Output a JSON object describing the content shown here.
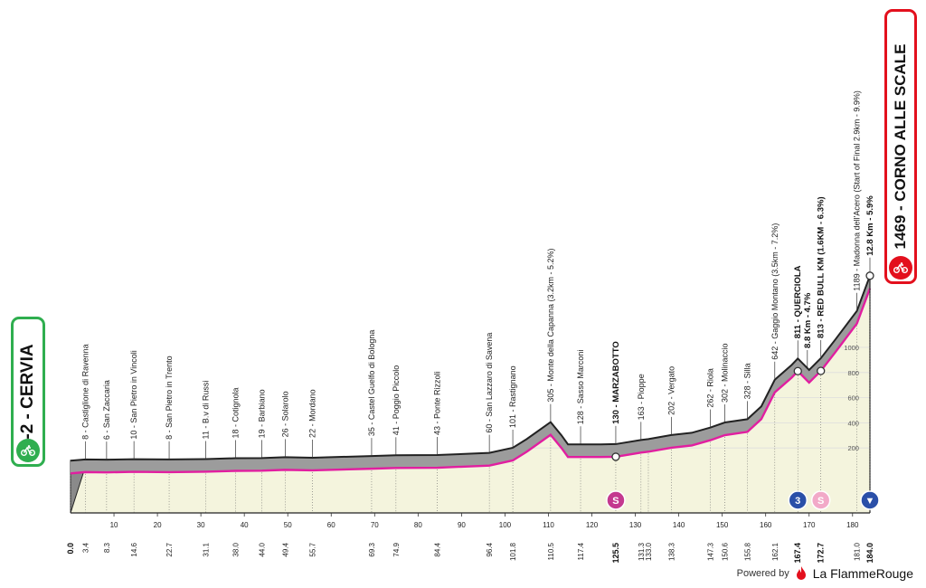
{
  "chart_data": {
    "type": "area",
    "title": "",
    "xlabel": "",
    "ylabel": "",
    "xlim": [
      0,
      184
    ],
    "ylim": [
      0,
      1500
    ],
    "altitude_ticks": [
      200,
      400,
      600,
      800,
      1000
    ],
    "start_label": "-2 - CERVIA",
    "finish_label": "1469 - CORNO ALLE SCALE",
    "km_ticks": [
      10,
      20,
      30,
      40,
      50,
      60,
      70,
      80,
      90,
      100,
      110,
      120,
      130,
      140,
      150,
      160,
      170,
      180
    ],
    "marked_km": [
      {
        "v": 0,
        "label": "0.0",
        "bold": true
      },
      {
        "v": 3.4,
        "label": "3.4"
      },
      {
        "v": 8.3,
        "label": "8.3"
      },
      {
        "v": 14.6,
        "label": "14.6"
      },
      {
        "v": 22.7,
        "label": "22.7"
      },
      {
        "v": 31.1,
        "label": "31.1"
      },
      {
        "v": 38.0,
        "label": "38.0"
      },
      {
        "v": 44.0,
        "label": "44.0"
      },
      {
        "v": 49.4,
        "label": "49.4"
      },
      {
        "v": 55.7,
        "label": "55.7"
      },
      {
        "v": 69.3,
        "label": "69.3"
      },
      {
        "v": 74.9,
        "label": "74.9"
      },
      {
        "v": 84.4,
        "label": "84.4"
      },
      {
        "v": 96.4,
        "label": "96.4"
      },
      {
        "v": 101.8,
        "label": "101.8"
      },
      {
        "v": 110.5,
        "label": "110.5"
      },
      {
        "v": 117.4,
        "label": "117.4"
      },
      {
        "v": 125.5,
        "label": "125.5",
        "bold": true
      },
      {
        "v": 131.3,
        "label": "131.3"
      },
      {
        "v": 133.0,
        "label": "133.0"
      },
      {
        "v": 138.3,
        "label": "138.3"
      },
      {
        "v": 147.3,
        "label": "147.3"
      },
      {
        "v": 150.6,
        "label": "150.6"
      },
      {
        "v": 155.8,
        "label": "155.8"
      },
      {
        "v": 162.1,
        "label": "162.1"
      },
      {
        "v": 167.4,
        "label": "167.4",
        "bold": true
      },
      {
        "v": 172.7,
        "label": "172.7",
        "bold": true
      },
      {
        "v": 181.0,
        "label": "181.0"
      },
      {
        "v": 184.0,
        "label": "184.0",
        "bold": true
      }
    ],
    "profile": [
      {
        "x": 0,
        "y": -2
      },
      {
        "x": 3.4,
        "y": 8
      },
      {
        "x": 8.3,
        "y": 6
      },
      {
        "x": 14.6,
        "y": 10
      },
      {
        "x": 22.7,
        "y": 8
      },
      {
        "x": 31.1,
        "y": 11
      },
      {
        "x": 38.0,
        "y": 18
      },
      {
        "x": 44.0,
        "y": 19
      },
      {
        "x": 49.4,
        "y": 26
      },
      {
        "x": 55.7,
        "y": 22
      },
      {
        "x": 69.3,
        "y": 35
      },
      {
        "x": 74.9,
        "y": 41
      },
      {
        "x": 84.4,
        "y": 43
      },
      {
        "x": 96.4,
        "y": 60
      },
      {
        "x": 101.8,
        "y": 101
      },
      {
        "x": 105,
        "y": 170
      },
      {
        "x": 110.5,
        "y": 305
      },
      {
        "x": 113,
        "y": 200
      },
      {
        "x": 114.5,
        "y": 128
      },
      {
        "x": 117.4,
        "y": 128
      },
      {
        "x": 122,
        "y": 128
      },
      {
        "x": 125.5,
        "y": 130
      },
      {
        "x": 131.3,
        "y": 163
      },
      {
        "x": 133.0,
        "y": 170
      },
      {
        "x": 138.3,
        "y": 202
      },
      {
        "x": 143,
        "y": 220
      },
      {
        "x": 147.3,
        "y": 262
      },
      {
        "x": 150.6,
        "y": 302
      },
      {
        "x": 155.8,
        "y": 328
      },
      {
        "x": 159,
        "y": 430
      },
      {
        "x": 162.1,
        "y": 642
      },
      {
        "x": 166,
        "y": 760
      },
      {
        "x": 167.4,
        "y": 811
      },
      {
        "x": 170,
        "y": 720
      },
      {
        "x": 172.7,
        "y": 813
      },
      {
        "x": 176,
        "y": 960
      },
      {
        "x": 181.0,
        "y": 1189
      },
      {
        "x": 184.0,
        "y": 1469
      }
    ],
    "places": [
      {
        "km": 3.4,
        "label": "8 - Castiglione di Ravenna"
      },
      {
        "km": 8.3,
        "label": "6 - San Zaccaria"
      },
      {
        "km": 14.6,
        "label": "10 - San Pietro in Vincoli"
      },
      {
        "km": 22.7,
        "label": "8 - San Pietro in Trento"
      },
      {
        "km": 31.1,
        "label": "11 - B.v di Russi"
      },
      {
        "km": 38.0,
        "label": "18 - Cotignola"
      },
      {
        "km": 44.0,
        "label": "19 - Barbiano"
      },
      {
        "km": 49.4,
        "label": "26 - Solarolo"
      },
      {
        "km": 55.7,
        "label": "22 - Mordano"
      },
      {
        "km": 69.3,
        "label": "35 - Castel Guelfo di Bologna"
      },
      {
        "km": 74.9,
        "label": "41 - Poggio Piccolo"
      },
      {
        "km": 84.4,
        "label": "43 - Ponte Rizzoli"
      },
      {
        "km": 96.4,
        "label": "60 - San Lazzaro di Savena"
      },
      {
        "km": 101.8,
        "label": "101 - Rastignano"
      },
      {
        "km": 110.5,
        "label": "305 - Monte della Capanna (3.2km - 5.2%)"
      },
      {
        "km": 117.4,
        "label": "128 - Sasso Marconi"
      },
      {
        "km": 125.5,
        "label": "130 - MARZABOTTO",
        "bold": true
      },
      {
        "km": 131.3,
        "label": "163 - Pioppe"
      },
      {
        "km": 138.3,
        "label": "202 - Vergato"
      },
      {
        "km": 147.3,
        "label": "262 - Riola"
      },
      {
        "km": 150.6,
        "label": "302 - Molinaccio"
      },
      {
        "km": 155.8,
        "label": "328 - Silla"
      },
      {
        "km": 162.1,
        "label": "642 - Gaggio Montano (3.5km - 7.2%)"
      },
      {
        "km": 167.4,
        "label": "811 - QUERCIOLA",
        "bold": true
      },
      {
        "km": 169.6,
        "label": "8.8 Km - 4.7%",
        "bold": true
      },
      {
        "km": 172.7,
        "label": "813 - RED BULL KM (1.6KM - 6.3%)",
        "bold": true
      },
      {
        "km": 181.0,
        "label": "1189 - Madonna dell'Acero (Start of Final 2.9km - 9.9%)"
      },
      {
        "km": 184.0,
        "label": "12.8 Km - 5.9%",
        "bold": true
      }
    ],
    "markers": [
      {
        "km": 125.5,
        "type": "sprint",
        "symbol": "S",
        "color": "#c4398f"
      },
      {
        "km": 167.4,
        "type": "kom-cat3",
        "symbol": "3",
        "color": "#2a4fa8"
      },
      {
        "km": 172.7,
        "type": "red-bull-km",
        "symbol": "S",
        "color": "#f2a9c8"
      },
      {
        "km": 184.0,
        "type": "finish",
        "symbol": "▼",
        "color": "#2a4fa8"
      }
    ],
    "colors": {
      "profile": "#9c9c9c",
      "route": "#e11ea0",
      "ground": "#f4f4dd",
      "outline": "#222222"
    }
  },
  "footer": {
    "powered": "Powered by",
    "brand": "La FlammeRouge"
  }
}
